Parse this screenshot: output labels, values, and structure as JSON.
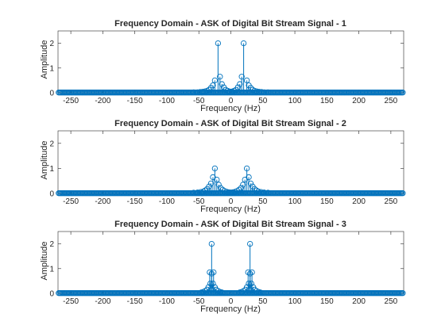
{
  "chart_data": [
    {
      "type": "stem",
      "title": "Frequency Domain - ASK of Digital Bit Stream Signal - 1",
      "xlabel": "Frequency (Hz)",
      "ylabel": "Amplitude",
      "xlim": [
        -270,
        270
      ],
      "ylim": [
        0,
        2.5
      ],
      "xticks": [
        -250,
        -200,
        -150,
        -100,
        -50,
        0,
        50,
        100,
        150,
        200,
        250
      ],
      "yticks": [
        0,
        1,
        2
      ],
      "marker": "circle",
      "color": "#0072bd",
      "points": [
        [
          -20,
          2.0
        ],
        [
          20,
          2.0
        ],
        [
          -17,
          0.65
        ],
        [
          17,
          0.65
        ],
        [
          -25,
          0.5
        ],
        [
          25,
          0.5
        ],
        [
          -14,
          0.35
        ],
        [
          14,
          0.35
        ],
        [
          -28,
          0.3
        ],
        [
          28,
          0.3
        ],
        [
          -11,
          0.22
        ],
        [
          11,
          0.22
        ],
        [
          -31,
          0.2
        ],
        [
          31,
          0.2
        ],
        [
          -8,
          0.12
        ],
        [
          8,
          0.12
        ],
        [
          -34,
          0.12
        ],
        [
          34,
          0.12
        ],
        [
          -5,
          0.08
        ],
        [
          5,
          0.08
        ],
        [
          -37,
          0.08
        ],
        [
          37,
          0.08
        ],
        [
          -2,
          0.05
        ],
        [
          2,
          0.05
        ],
        [
          -40,
          0.06
        ],
        [
          40,
          0.06
        ],
        [
          -44,
          0.04
        ],
        [
          44,
          0.04
        ],
        [
          -48,
          0.03
        ],
        [
          48,
          0.03
        ],
        [
          -52,
          0.02
        ],
        [
          52,
          0.02
        ],
        [
          -58,
          0.02
        ],
        [
          58,
          0.02
        ]
      ]
    },
    {
      "type": "stem",
      "title": "Frequency Domain - ASK of Digital Bit Stream Signal - 2",
      "xlabel": "Frequency (Hz)",
      "ylabel": "Amplitude",
      "xlim": [
        -270,
        270
      ],
      "ylim": [
        0,
        2.5
      ],
      "xticks": [
        -250,
        -200,
        -150,
        -100,
        -50,
        0,
        50,
        100,
        150,
        200,
        250
      ],
      "yticks": [
        0,
        1,
        2
      ],
      "marker": "circle",
      "color": "#0072bd",
      "points": [
        [
          -25,
          1.0
        ],
        [
          25,
          1.0
        ],
        [
          -28,
          0.65
        ],
        [
          28,
          0.65
        ],
        [
          -22,
          0.55
        ],
        [
          22,
          0.55
        ],
        [
          -31,
          0.4
        ],
        [
          31,
          0.4
        ],
        [
          -19,
          0.35
        ],
        [
          19,
          0.35
        ],
        [
          -34,
          0.28
        ],
        [
          34,
          0.28
        ],
        [
          -16,
          0.22
        ],
        [
          16,
          0.22
        ],
        [
          -37,
          0.18
        ],
        [
          37,
          0.18
        ],
        [
          -13,
          0.15
        ],
        [
          13,
          0.15
        ],
        [
          -40,
          0.12
        ],
        [
          40,
          0.12
        ],
        [
          -10,
          0.1
        ],
        [
          10,
          0.1
        ],
        [
          -43,
          0.08
        ],
        [
          43,
          0.08
        ],
        [
          -7,
          0.07
        ],
        [
          7,
          0.07
        ],
        [
          -4,
          0.05
        ],
        [
          4,
          0.05
        ],
        [
          -47,
          0.06
        ],
        [
          47,
          0.06
        ],
        [
          -1,
          0.04
        ],
        [
          1,
          0.04
        ],
        [
          -52,
          0.04
        ],
        [
          52,
          0.04
        ],
        [
          -58,
          0.03
        ],
        [
          58,
          0.03
        ]
      ]
    },
    {
      "type": "stem",
      "title": "Frequency Domain - ASK of Digital Bit Stream Signal - 3",
      "xlabel": "Frequency (Hz)",
      "ylabel": "Amplitude",
      "xlim": [
        -270,
        270
      ],
      "ylim": [
        0,
        2.5
      ],
      "xticks": [
        -250,
        -200,
        -150,
        -100,
        -50,
        0,
        50,
        100,
        150,
        200,
        250
      ],
      "yticks": [
        0,
        1,
        2
      ],
      "marker": "circle",
      "color": "#0072bd",
      "points": [
        [
          -30,
          2.0
        ],
        [
          30,
          2.0
        ],
        [
          -30,
          0.8
        ],
        [
          30,
          0.8
        ],
        [
          -27,
          0.85
        ],
        [
          27,
          0.85
        ],
        [
          -33,
          0.85
        ],
        [
          33,
          0.85
        ],
        [
          -28,
          0.4
        ],
        [
          28,
          0.4
        ],
        [
          -32,
          0.4
        ],
        [
          32,
          0.4
        ],
        [
          -25,
          0.25
        ],
        [
          25,
          0.25
        ],
        [
          -35,
          0.25
        ],
        [
          35,
          0.25
        ],
        [
          -23,
          0.15
        ],
        [
          23,
          0.15
        ],
        [
          -37,
          0.15
        ],
        [
          37,
          0.15
        ],
        [
          -20,
          0.1
        ],
        [
          20,
          0.1
        ],
        [
          -40,
          0.1
        ],
        [
          40,
          0.1
        ],
        [
          -17,
          0.06
        ],
        [
          17,
          0.06
        ],
        [
          -43,
          0.06
        ],
        [
          43,
          0.06
        ],
        [
          -14,
          0.04
        ],
        [
          14,
          0.04
        ],
        [
          -46,
          0.04
        ],
        [
          46,
          0.04
        ]
      ]
    }
  ]
}
